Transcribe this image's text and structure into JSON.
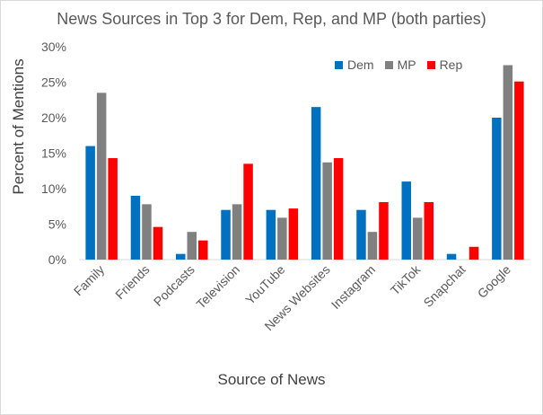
{
  "chart_data": {
    "type": "bar",
    "title": "News Sources in Top 3 for Dem, Rep, and MP (both parties)",
    "xlabel": "Source of News",
    "ylabel": "Percent of Mentions",
    "ylim": [
      0,
      30
    ],
    "yticks": [
      0,
      5,
      10,
      15,
      20,
      25,
      30
    ],
    "ytick_labels": [
      "0%",
      "5%",
      "10%",
      "15%",
      "20%",
      "25%",
      "30%"
    ],
    "categories": [
      "Family",
      "Friends",
      "Podcasts",
      "Television",
      "YouTube",
      "News Websites",
      "Instagram",
      "TikTok",
      "Snapchat",
      "Google"
    ],
    "series": [
      {
        "name": "Dem",
        "color": "#0070c0",
        "values": [
          16.0,
          9.0,
          0.8,
          7.0,
          7.0,
          21.5,
          7.0,
          11.0,
          0.8,
          20.0
        ]
      },
      {
        "name": "MP",
        "color": "#808080",
        "values": [
          23.5,
          7.8,
          3.9,
          7.8,
          5.9,
          13.7,
          3.9,
          5.9,
          0.0,
          27.4
        ]
      },
      {
        "name": "Rep",
        "color": "#ff0000",
        "values": [
          14.3,
          4.6,
          2.7,
          13.5,
          7.2,
          14.3,
          8.1,
          8.1,
          1.8,
          25.1
        ]
      }
    ],
    "legend_position": "top-right",
    "grid": false
  }
}
